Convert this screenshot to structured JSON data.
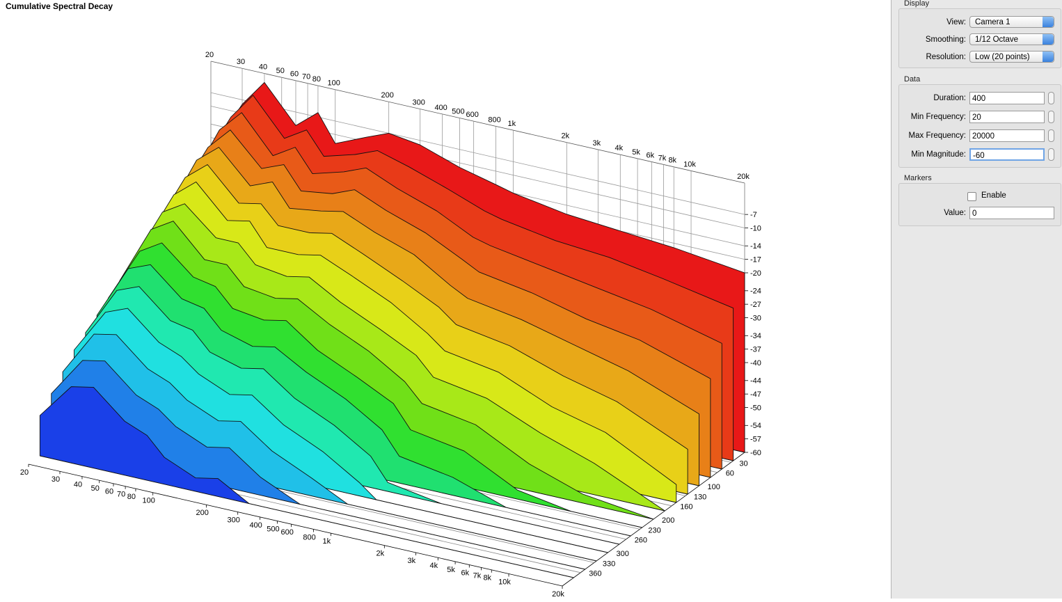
{
  "chart_data": {
    "type": "waterfall",
    "title": "Cumulative Spectral Decay",
    "x": [
      20,
      30,
      40,
      60,
      80,
      100,
      150,
      200,
      300,
      500,
      800,
      1000,
      2000,
      4000,
      8000,
      20000
    ],
    "xlim": [
      20,
      20000
    ],
    "log_x": true,
    "xticks": [
      20,
      30,
      40,
      50,
      60,
      70,
      80,
      100,
      200,
      300,
      400,
      500,
      600,
      800,
      {
        "value": 1000,
        "label": "1k"
      },
      {
        "value": 2000,
        "label": "2k"
      },
      {
        "value": 3000,
        "label": "3k"
      },
      {
        "value": 4000,
        "label": "4k"
      },
      {
        "value": 5000,
        "label": "5k"
      },
      {
        "value": 6000,
        "label": "6k"
      },
      {
        "value": 7000,
        "label": "7k"
      },
      {
        "value": 8000,
        "label": "8k"
      },
      {
        "value": 10000,
        "label": "10k"
      },
      {
        "value": 20000,
        "label": "20k"
      }
    ],
    "zlim": [
      -60,
      0
    ],
    "zticks": [
      -7,
      -10,
      -14,
      -17,
      -20,
      -24,
      -27,
      -30,
      -34,
      -37,
      -40,
      -44,
      -47,
      -50,
      -54,
      -57,
      -60
    ],
    "tlim": [
      0,
      400
    ],
    "tticks": [
      30,
      60,
      100,
      130,
      160,
      200,
      230,
      260,
      300,
      330,
      360
    ],
    "series": [
      {
        "time": 0,
        "color": "#e81818",
        "values": [
          -20,
          -8,
          -2,
          -10,
          -6,
          -12,
          -9,
          -7,
          -8,
          -11,
          -13,
          -14,
          -16,
          -17,
          -18,
          -20
        ]
      },
      {
        "time": 25,
        "color": "#e83a18",
        "values": [
          -22,
          -9,
          -3,
          -11,
          -8,
          -13,
          -11,
          -9,
          -11,
          -14,
          -17,
          -18,
          -20,
          -21,
          -23,
          -26
        ]
      },
      {
        "time": 50,
        "color": "#e85a18",
        "values": [
          -24,
          -10,
          -5,
          -13,
          -10,
          -15,
          -13,
          -11,
          -14,
          -17,
          -21,
          -22,
          -24,
          -26,
          -28,
          -32
        ]
      },
      {
        "time": 75,
        "color": "#e88018",
        "values": [
          -25,
          -12,
          -7,
          -14,
          -12,
          -17,
          -16,
          -14,
          -17,
          -20,
          -24,
          -26,
          -28,
          -31,
          -33,
          -38
        ]
      },
      {
        "time": 100,
        "color": "#e8a818",
        "values": [
          -27,
          -13,
          -9,
          -16,
          -14,
          -19,
          -18,
          -17,
          -20,
          -23,
          -28,
          -30,
          -32,
          -35,
          -38,
          -44
        ]
      },
      {
        "time": 125,
        "color": "#e8d018",
        "values": [
          -28,
          -15,
          -11,
          -18,
          -17,
          -21,
          -21,
          -20,
          -23,
          -27,
          -31,
          -34,
          -36,
          -40,
          -43,
          -50
        ]
      },
      {
        "time": 150,
        "color": "#d8e818",
        "values": [
          -30,
          -17,
          -13,
          -20,
          -19,
          -24,
          -24,
          -23,
          -26,
          -30,
          -35,
          -38,
          -40,
          -45,
          -48,
          -56
        ]
      },
      {
        "time": 175,
        "color": "#a8e818",
        "values": [
          -32,
          -19,
          -16,
          -22,
          -22,
          -26,
          -27,
          -26,
          -30,
          -34,
          -38,
          -42,
          -44,
          -49,
          -53,
          -60
        ]
      },
      {
        "time": 200,
        "color": "#70e018",
        "values": [
          -34,
          -21,
          -18,
          -25,
          -25,
          -29,
          -30,
          -29,
          -33,
          -37,
          -42,
          -46,
          -48,
          -54,
          -58,
          -60
        ]
      },
      {
        "time": 225,
        "color": "#30e030",
        "values": [
          -36,
          -24,
          -21,
          -27,
          -28,
          -32,
          -33,
          -32,
          -37,
          -41,
          -45,
          -50,
          -52,
          -58,
          -60,
          -60
        ]
      },
      {
        "time": 250,
        "color": "#20e070",
        "values": [
          -38,
          -26,
          -24,
          -30,
          -31,
          -35,
          -37,
          -36,
          -40,
          -44,
          -49,
          -54,
          -56,
          -60,
          -60,
          -60
        ]
      },
      {
        "time": 275,
        "color": "#20e8b0",
        "values": [
          -40,
          -29,
          -27,
          -33,
          -34,
          -38,
          -40,
          -39,
          -44,
          -48,
          -53,
          -58,
          -60,
          -60,
          -60,
          -60
        ]
      },
      {
        "time": 300,
        "color": "#20e0e0",
        "values": [
          -42,
          -32,
          -30,
          -36,
          -38,
          -41,
          -44,
          -43,
          -48,
          -52,
          -57,
          -60,
          -60,
          -60,
          -60,
          -60
        ]
      },
      {
        "time": 325,
        "color": "#20c0e8",
        "values": [
          -45,
          -35,
          -34,
          -40,
          -42,
          -45,
          -48,
          -47,
          -52,
          -56,
          -60,
          -60,
          -60,
          -60,
          -60,
          -60
        ]
      },
      {
        "time": 350,
        "color": "#2080e8",
        "values": [
          -48,
          -39,
          -38,
          -44,
          -46,
          -49,
          -52,
          -51,
          -56,
          -60,
          -60,
          -60,
          -60,
          -60,
          -60,
          -60
        ]
      },
      {
        "time": 375,
        "color": "#1a40e8",
        "values": [
          -51,
          -43,
          -42,
          -48,
          -50,
          -54,
          -57,
          -56,
          -60,
          -60,
          -60,
          -60,
          -60,
          -60,
          -60,
          -60
        ]
      }
    ]
  },
  "panel": {
    "groups": [
      {
        "title": "Display",
        "fields": [
          {
            "label": "View:",
            "value": "Camera 1"
          },
          {
            "label": "Smoothing:",
            "value": "1/12 Octave"
          },
          {
            "label": "Resolution:",
            "value": "Low (20 points)"
          }
        ]
      },
      {
        "title": "Data",
        "fields": [
          {
            "label": "Duration:",
            "value": "400"
          },
          {
            "label": "Min Frequency:",
            "value": "20"
          },
          {
            "label": "Max Frequency:",
            "value": "20000"
          },
          {
            "label": "Min Magnitude:",
            "value": "-60"
          }
        ]
      },
      {
        "title": "Markers",
        "checkbox": "Enable",
        "fields": [
          {
            "label": "Value:",
            "value": "0"
          }
        ]
      }
    ]
  }
}
